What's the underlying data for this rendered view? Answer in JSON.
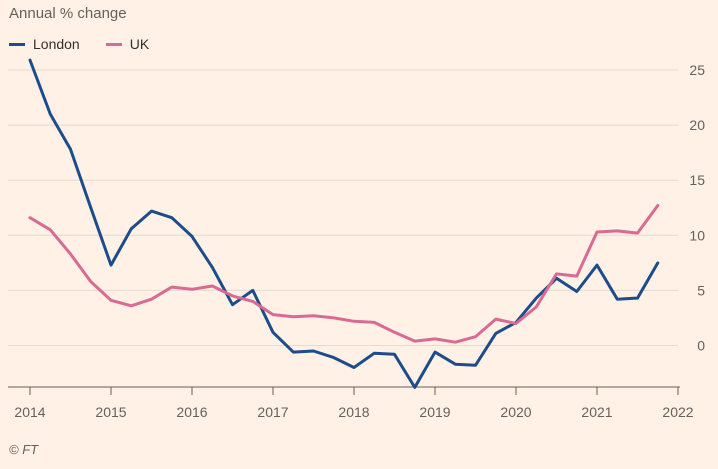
{
  "chart_data": {
    "type": "line",
    "subtitle": "Annual % change",
    "credit": "© FT",
    "ylim": [
      -4,
      27
    ],
    "y_ticks": [
      0,
      5,
      10,
      15,
      20,
      25
    ],
    "x_ticks": [
      2014,
      2015,
      2016,
      2017,
      2018,
      2019,
      2020,
      2021,
      2022
    ],
    "x_tick_labels": [
      "2014",
      "2015",
      "2016",
      "2017",
      "2018",
      "2019",
      "2020",
      "2021",
      "2022"
    ],
    "x_range": [
      2014.0,
      2022.0
    ],
    "grid": true,
    "legend_position": "top-left",
    "x": [
      2014.0,
      2014.25,
      2014.5,
      2014.75,
      2015.0,
      2015.25,
      2015.5,
      2015.75,
      2016.0,
      2016.25,
      2016.5,
      2016.75,
      2017.0,
      2017.25,
      2017.5,
      2017.75,
      2018.0,
      2018.25,
      2018.5,
      2018.75,
      2019.0,
      2019.25,
      2019.5,
      2019.75,
      2020.0,
      2020.25,
      2020.5,
      2020.75,
      2021.0,
      2021.25,
      2021.5,
      2021.75,
      2022.0
    ],
    "series": [
      {
        "name": "London",
        "color": "#1c4c8c",
        "values": [
          25.9,
          21.0,
          17.8,
          12.5,
          7.3,
          10.6,
          12.2,
          11.6,
          9.9,
          7.1,
          3.7,
          5.0,
          1.2,
          -0.6,
          -0.5,
          -1.1,
          -2.0,
          -0.7,
          -0.8,
          -3.8,
          -0.6,
          -1.7,
          -1.8,
          1.1,
          2.1,
          4.3,
          6.1,
          4.9,
          7.3,
          4.2,
          4.3,
          7.5,
          null
        ],
        "values_note": ""
      },
      {
        "name": "UK",
        "color": "#d96a93",
        "values": [
          11.6,
          10.5,
          8.3,
          5.8,
          4.1,
          3.6,
          4.2,
          5.3,
          5.1,
          5.4,
          4.5,
          4.0,
          2.8,
          2.6,
          2.7,
          2.5,
          2.2,
          2.1,
          1.2,
          0.4,
          0.6,
          0.3,
          0.8,
          2.4,
          2.0,
          3.5,
          6.5,
          6.3,
          10.3,
          10.4,
          10.2,
          12.7,
          null
        ]
      }
    ]
  }
}
